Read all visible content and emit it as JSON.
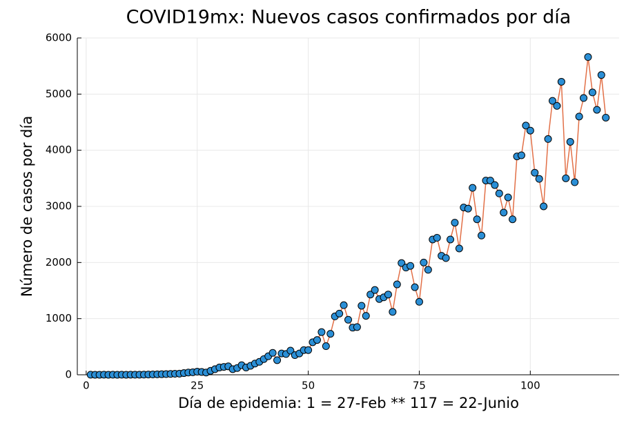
{
  "chart_data": {
    "type": "line",
    "title": "COVID19mx: Nuevos casos confirmados por día",
    "xlabel": "Día de epidemia: 1 = 27-Feb ** 117 = 22-Junio",
    "ylabel": "Número de casos por día",
    "x": [
      1,
      2,
      3,
      4,
      5,
      6,
      7,
      8,
      9,
      10,
      11,
      12,
      13,
      14,
      15,
      16,
      17,
      18,
      19,
      20,
      21,
      22,
      23,
      24,
      25,
      26,
      27,
      28,
      29,
      30,
      31,
      32,
      33,
      34,
      35,
      36,
      37,
      38,
      39,
      40,
      41,
      42,
      43,
      44,
      45,
      46,
      47,
      48,
      49,
      50,
      51,
      52,
      53,
      54,
      55,
      56,
      57,
      58,
      59,
      60,
      61,
      62,
      63,
      64,
      65,
      66,
      67,
      68,
      69,
      70,
      71,
      72,
      73,
      74,
      75,
      76,
      77,
      78,
      79,
      80,
      81,
      82,
      83,
      84,
      85,
      86,
      87,
      88,
      89,
      90,
      91,
      92,
      93,
      94,
      95,
      96,
      97,
      98,
      99,
      100,
      101,
      102,
      103,
      104,
      105,
      106,
      107,
      108,
      109,
      110,
      111,
      112,
      113,
      114,
      115,
      116,
      117
    ],
    "series": [
      {
        "color": "#e26f46",
        "marker_color": "#2b8fd6",
        "values": [
          1,
          0,
          0,
          2,
          0,
          1,
          0,
          1,
          0,
          2,
          1,
          2,
          3,
          5,
          6,
          8,
          10,
          12,
          15,
          18,
          20,
          30,
          40,
          45,
          55,
          50,
          40,
          70,
          100,
          130,
          140,
          150,
          100,
          120,
          170,
          130,
          160,
          200,
          230,
          280,
          330,
          390,
          260,
          380,
          370,
          430,
          350,
          380,
          440,
          440,
          580,
          620,
          760,
          510,
          730,
          1040,
          1090,
          1240,
          980,
          840,
          850,
          1230,
          1050,
          1430,
          1510,
          1350,
          1380,
          1430,
          1120,
          1610,
          1990,
          1910,
          1940,
          1560,
          1300,
          2000,
          1870,
          2410,
          2440,
          2120,
          2080,
          2410,
          2710,
          2250,
          2980,
          2960,
          3330,
          2770,
          2480,
          3460,
          3460,
          3380,
          3230,
          2890,
          3160,
          2770,
          3890,
          3910,
          4440,
          4350,
          3600,
          3490,
          3000,
          4200,
          4880,
          4790,
          5220,
          3500,
          4150,
          3430,
          4600,
          4930,
          5660,
          5030,
          4720,
          5340,
          4580
        ]
      }
    ],
    "xlim": [
      -2,
      120
    ],
    "xticks": [
      0,
      25,
      50,
      75,
      100
    ],
    "ylim": [
      0,
      6000
    ],
    "yticks": [
      0,
      1000,
      2000,
      3000,
      4000,
      5000,
      6000
    ],
    "grid": true
  }
}
